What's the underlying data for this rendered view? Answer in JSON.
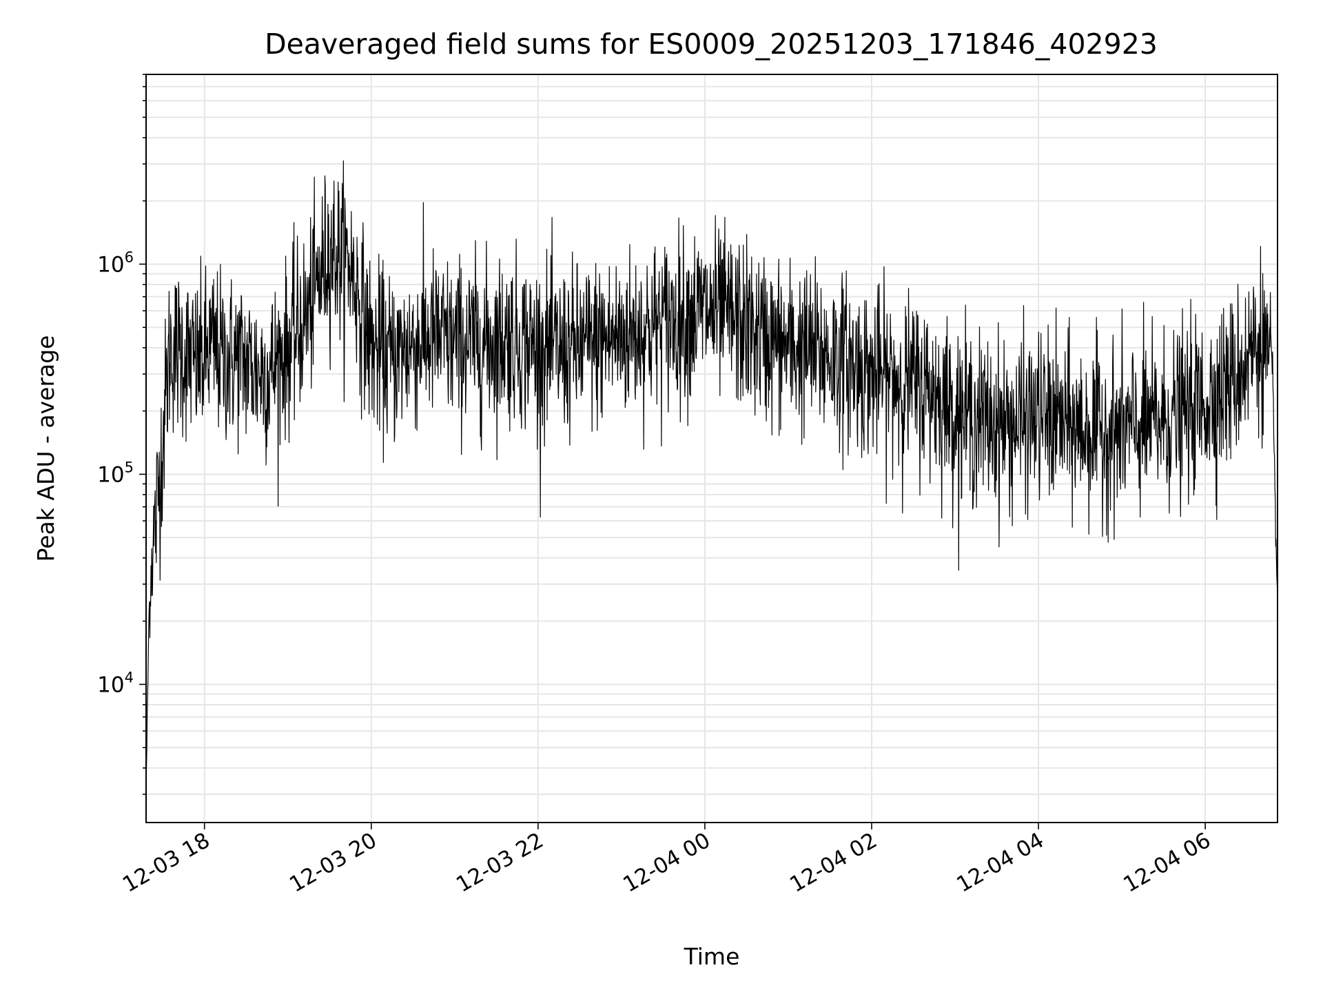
{
  "chart_data": {
    "type": "line",
    "title": "Deaveraged field sums for ES0009_20251203_171846_402923",
    "xlabel": "Time",
    "ylabel": "Peak ADU - average",
    "x_axis": {
      "type": "time",
      "range": [
        "2025-12-03 17:18",
        "2025-12-04 06:52"
      ],
      "ticks": [
        {
          "value": "2025-12-03 18:00",
          "label": "12-03 18"
        },
        {
          "value": "2025-12-03 20:00",
          "label": "12-03 20"
        },
        {
          "value": "2025-12-03 22:00",
          "label": "12-03 22"
        },
        {
          "value": "2025-12-04 00:00",
          "label": "12-04 00"
        },
        {
          "value": "2025-12-04 02:00",
          "label": "12-04 02"
        },
        {
          "value": "2025-12-04 04:00",
          "label": "12-04 04"
        },
        {
          "value": "2025-12-04 06:00",
          "label": "12-04 06"
        }
      ],
      "tick_label_rotation": 30
    },
    "y_axis": {
      "scale": "log",
      "range": [
        2200,
        8000000
      ],
      "major_ticks": [
        {
          "value": 10000,
          "label_base": "10",
          "label_exp": "4"
        },
        {
          "value": 100000,
          "label_base": "10",
          "label_exp": "5"
        },
        {
          "value": 1000000,
          "label_base": "10",
          "label_exp": "6"
        }
      ]
    },
    "grid": "on (major and minor)",
    "line_color": "#000000",
    "series": [
      {
        "x": [
          "2025-12-03 17:18",
          "2025-12-03 17:20",
          "2025-12-03 17:22",
          "2025-12-03 17:25",
          "2025-12-03 17:30",
          "2025-12-03 17:35",
          "2025-12-03 17:45",
          "2025-12-03 17:55",
          "2025-12-03 18:05",
          "2025-12-03 18:15",
          "2025-12-03 18:25",
          "2025-12-03 18:35",
          "2025-12-03 18:45",
          "2025-12-03 19:00",
          "2025-12-03 19:15",
          "2025-12-03 19:30",
          "2025-12-03 19:45",
          "2025-12-03 20:00",
          "2025-12-03 20:15",
          "2025-12-03 20:30",
          "2025-12-03 20:45",
          "2025-12-03 21:00",
          "2025-12-03 21:20",
          "2025-12-03 21:40",
          "2025-12-03 22:00",
          "2025-12-03 22:20",
          "2025-12-03 22:40",
          "2025-12-03 23:00",
          "2025-12-03 23:20",
          "2025-12-03 23:40",
          "2025-12-04 00:00",
          "2025-12-04 00:20",
          "2025-12-04 00:40",
          "2025-12-04 01:00",
          "2025-12-04 01:20",
          "2025-12-04 01:40",
          "2025-12-04 02:00",
          "2025-12-04 02:20",
          "2025-12-04 02:40",
          "2025-12-04 03:00",
          "2025-12-04 03:20",
          "2025-12-04 03:40",
          "2025-12-04 04:00",
          "2025-12-04 04:20",
          "2025-12-04 04:40",
          "2025-12-04 05:00",
          "2025-12-04 05:20",
          "2025-12-04 05:40",
          "2025-12-04 06:00",
          "2025-12-04 06:20",
          "2025-12-04 06:40",
          "2025-12-04 06:48",
          "2025-12-04 06:52"
        ],
        "y": [
          3000,
          20000,
          40000,
          60000,
          150000,
          400000,
          380000,
          330000,
          400000,
          350000,
          360000,
          320000,
          300000,
          400000,
          600000,
          1200000,
          1000000,
          400000,
          350000,
          420000,
          450000,
          420000,
          420000,
          450000,
          400000,
          380000,
          420000,
          450000,
          500000,
          550000,
          600000,
          550000,
          450000,
          400000,
          380000,
          350000,
          300000,
          280000,
          260000,
          200000,
          180000,
          170000,
          190000,
          170000,
          160000,
          160000,
          170000,
          190000,
          220000,
          280000,
          450000,
          300000,
          25000
        ]
      }
    ]
  }
}
